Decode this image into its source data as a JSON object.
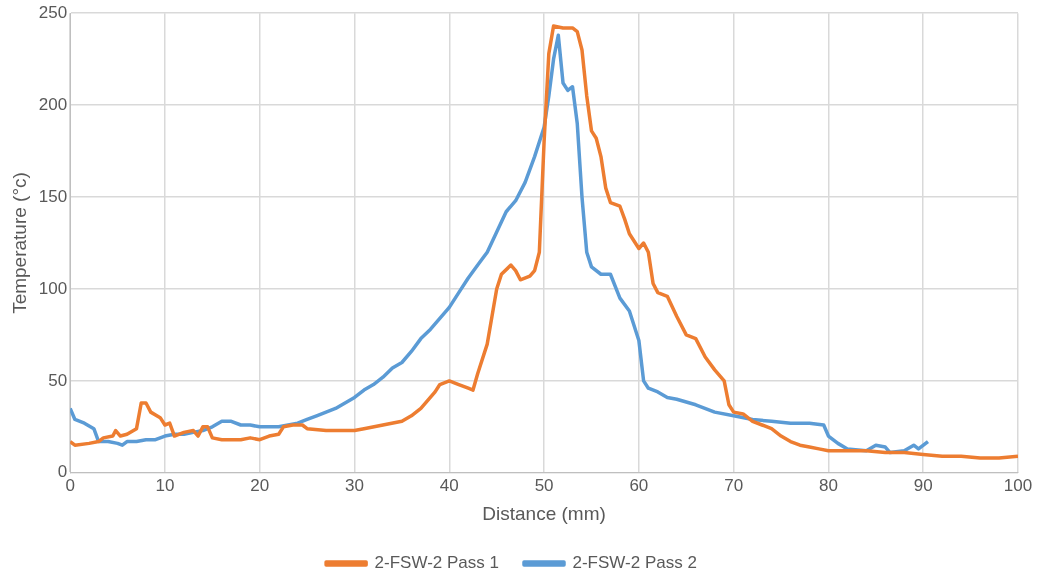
{
  "chart_data": {
    "type": "line",
    "xlabel": "Distance (mm)",
    "ylabel": "Temperature (°c)",
    "xlim": [
      0,
      100
    ],
    "xticks": [
      0,
      10,
      20,
      30,
      40,
      50,
      60,
      70,
      80,
      90,
      100
    ],
    "ylim": [
      0,
      250
    ],
    "yticks": [
      0,
      50,
      100,
      150,
      200,
      250
    ],
    "grid": true,
    "legend": "bottom",
    "marker": "none",
    "line_style": "solid",
    "series": [
      {
        "name": "2-FSW-2 Pass 1",
        "color": "#ed7d31",
        "x": [
          0,
          0.5,
          2,
          3,
          3.5,
          4.5,
          4.8,
          5.3,
          6,
          7,
          7.5,
          8,
          8.5,
          9.5,
          10,
          10.5,
          11,
          12,
          13,
          13.5,
          14,
          14.5,
          15,
          16,
          18,
          19,
          20,
          21,
          22,
          22.5,
          23.5,
          24.5,
          25,
          27,
          30,
          31,
          33,
          35,
          36,
          37,
          38,
          38.5,
          39,
          40,
          41,
          42,
          42.5,
          43,
          44,
          44.5,
          45,
          45.5,
          46.5,
          47,
          47.5,
          48.5,
          49,
          49.5,
          50,
          50.5,
          51,
          52,
          53,
          53.5,
          54,
          54.5,
          55,
          55.5,
          56,
          56.5,
          57,
          58,
          58.5,
          59,
          60,
          60.5,
          61,
          61.5,
          62,
          63,
          64,
          65,
          66,
          67,
          68,
          69,
          69.5,
          70,
          71,
          72,
          73,
          74,
          75,
          76,
          77,
          78,
          79,
          80,
          82,
          84,
          86,
          88,
          90,
          92,
          94,
          96,
          98,
          100
        ],
        "values": [
          17,
          15,
          16,
          17,
          19,
          20,
          23,
          20,
          21,
          24,
          38,
          38,
          33,
          30,
          26,
          27,
          20,
          22,
          23,
          20,
          25,
          25,
          19,
          18,
          18,
          19,
          18,
          20,
          21,
          25,
          26,
          26,
          24,
          23,
          23,
          24,
          26,
          28,
          31,
          35,
          41,
          44,
          48,
          50,
          48,
          46,
          45,
          54,
          70,
          85,
          100,
          108,
          113,
          110,
          105,
          107,
          110,
          120,
          180,
          228,
          243,
          242,
          242,
          240,
          230,
          205,
          186,
          182,
          172,
          155,
          147,
          145,
          138,
          130,
          122,
          125,
          120,
          103,
          98,
          96,
          85,
          75,
          73,
          63,
          56,
          50,
          37,
          33,
          32,
          28,
          26,
          24,
          20,
          17,
          15,
          14,
          13,
          12,
          12,
          12,
          11,
          11,
          10,
          9,
          9,
          8,
          8,
          9
        ]
      },
      {
        "name": "2-FSW-2 Pass 2",
        "color": "#5b9bd5",
        "x": [
          0,
          0.5,
          1.5,
          2.5,
          3,
          4,
          5,
          5.5,
          6,
          7,
          8,
          9,
          10,
          11,
          12,
          13,
          14,
          15,
          16,
          17,
          18,
          19,
          20,
          21,
          22,
          24,
          25,
          26,
          27,
          28,
          29,
          30,
          31,
          32,
          33,
          34,
          35,
          36,
          37,
          38,
          39,
          40,
          41,
          42,
          43,
          44,
          45,
          46,
          47,
          48,
          49,
          50,
          50.5,
          51,
          51.5,
          52,
          52.5,
          53,
          53.5,
          54,
          54.5,
          55,
          56,
          57,
          58,
          59,
          60,
          60.5,
          61,
          62,
          63,
          64,
          66,
          68,
          70,
          72,
          74,
          76,
          78,
          79.5,
          80,
          81,
          82,
          84,
          85,
          86,
          86.5,
          88,
          89,
          89.5,
          90.5
        ],
        "values": [
          35,
          29,
          27,
          24,
          17,
          17,
          16,
          15,
          17,
          17,
          18,
          18,
          20,
          21,
          21,
          22,
          23,
          25,
          28,
          28,
          26,
          26,
          25,
          25,
          25,
          27,
          29,
          31,
          33,
          35,
          38,
          41,
          45,
          48,
          52,
          57,
          60,
          66,
          73,
          78,
          84,
          90,
          98,
          106,
          113,
          120,
          131,
          142,
          148,
          158,
          172,
          188,
          205,
          225,
          238,
          212,
          208,
          210,
          190,
          150,
          120,
          112,
          108,
          108,
          95,
          88,
          72,
          50,
          46,
          44,
          41,
          40,
          37,
          33,
          31,
          29,
          28,
          27,
          27,
          26,
          20,
          16,
          13,
          12,
          15,
          14,
          11,
          12,
          15,
          13,
          17
        ]
      }
    ]
  }
}
